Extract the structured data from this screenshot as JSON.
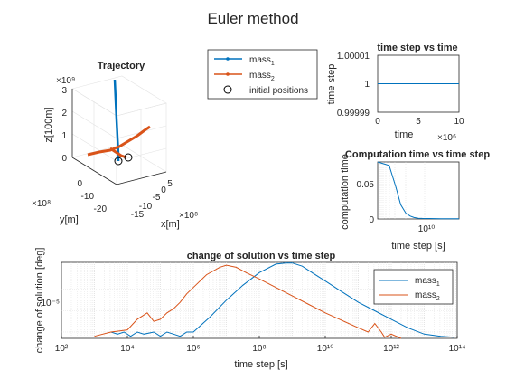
{
  "figure_title": "Euler method",
  "colors": {
    "mass1": "#0072BD",
    "mass2": "#D95319",
    "axis": "#262626",
    "grid": "#dddddd"
  },
  "chart_data": [
    {
      "id": "trajectory",
      "type": "line3d",
      "title": "Trajectory",
      "xlabel": "x[m]",
      "ylabel": "y[m]",
      "zlabel": "z[100m]",
      "x_exponent": "×10⁸",
      "y_exponent": "×10⁸",
      "z_exponent": "×10⁹",
      "x_ticks": [
        "-15",
        "-10",
        "-5",
        "0",
        "5"
      ],
      "y_ticks": [
        "-20",
        "-10",
        "0"
      ],
      "z_ticks": [
        "0",
        "1",
        "2",
        "3"
      ],
      "legend": {
        "entries": [
          {
            "label": "mass",
            "subscript": "1",
            "color": "#0072BD",
            "marker": "dot"
          },
          {
            "label": "mass",
            "subscript": "2",
            "color": "#D95319",
            "marker": "dot"
          },
          {
            "label": "initial positions",
            "color": "#000000",
            "marker": "circle"
          }
        ]
      }
    },
    {
      "id": "timestep",
      "type": "line",
      "title": "time step vs time",
      "xlabel": "time",
      "ylabel": "time step",
      "x_exponent": "×10⁶",
      "x_ticks": [
        "0",
        "5",
        "10"
      ],
      "y_ticks": [
        "0.99999",
        "1",
        "1.00001"
      ],
      "xlim": [
        0,
        10000000
      ],
      "ylim": [
        0.99999,
        1.00001
      ],
      "series": [
        {
          "x": [
            0,
            10000000
          ],
          "y": [
            1,
            1
          ]
        }
      ]
    },
    {
      "id": "comptime",
      "type": "line",
      "title": "Computation time vs time step",
      "xlabel": "time step [s]",
      "ylabel": "computation time",
      "x_tick_labels": [
        "10¹⁰"
      ],
      "y_ticks": [
        "0",
        "0.05"
      ],
      "ylim": [
        0,
        0.08
      ],
      "series": [
        {
          "x": [
            0,
            0.02,
            0.05,
            0.08,
            0.12,
            0.16,
            0.2,
            0.25,
            0.3,
            0.4,
            0.5,
            0.6,
            0.7,
            0.8,
            0.9,
            1.0
          ],
          "y": [
            0.08,
            0.075,
            0.045,
            0.02,
            0.008,
            0.004,
            0.002,
            0.001,
            0.0008,
            0.0006,
            0.0005,
            0.0004,
            0.0004,
            0.0003,
            0.0003,
            0.0003
          ]
        }
      ]
    },
    {
      "id": "change",
      "type": "line",
      "title": "change of solution vs time step",
      "xlabel": "time step [s]",
      "ylabel": "change of solution [deg]",
      "xscale": "log",
      "yscale": "log",
      "xlim": [
        100,
        100000000000000
      ],
      "x_ticks": [
        100,
        10000,
        1000000,
        100000000,
        10000000000,
        1000000000000,
        100000000000000
      ],
      "x_tick_labels": [
        "10²",
        "10⁴",
        "10⁶",
        "10⁸",
        "10¹⁰",
        "10¹²",
        "10¹⁴"
      ],
      "y_tick_labels": [
        "10⁻⁵"
      ],
      "legend": {
        "position": "top-right",
        "entries": [
          {
            "label": "mass",
            "subscript": "1",
            "color": "#0072BD"
          },
          {
            "label": "mass",
            "subscript": "2",
            "color": "#D95319"
          }
        ]
      },
      "series": [
        {
          "name": "mass1",
          "log10x": [
            3.5,
            3.7,
            3.9,
            4.1,
            4.3,
            4.5,
            4.8,
            5.0,
            5.2,
            5.4,
            5.6,
            5.8,
            6.0,
            6.5,
            7.0,
            7.5,
            8.0,
            8.5,
            8.8,
            9.0,
            9.3,
            9.6,
            10.0,
            10.5,
            11.0,
            11.5,
            12.0,
            12.5,
            13.0,
            13.5,
            13.9
          ],
          "log10y": [
            -7.0,
            -7.1,
            -7.0,
            -7.2,
            -7.0,
            -7.1,
            -7.0,
            -7.2,
            -7.0,
            -7.1,
            -7.2,
            -7.0,
            -7.0,
            -6.3,
            -5.5,
            -4.8,
            -4.2,
            -3.8,
            -3.75,
            -3.75,
            -3.9,
            -4.2,
            -4.6,
            -5.1,
            -5.6,
            -6.0,
            -6.4,
            -6.8,
            -7.1,
            -7.2,
            -7.25
          ]
        },
        {
          "name": "mass2",
          "log10x": [
            3.0,
            3.5,
            4.0,
            4.3,
            4.6,
            4.8,
            5.0,
            5.2,
            5.4,
            5.6,
            5.8,
            6.0,
            6.4,
            6.8,
            7.0,
            7.3,
            7.6,
            8.0,
            8.5,
            9.0,
            9.5,
            10.0,
            10.5,
            11.0,
            11.3,
            11.5,
            11.7,
            11.8,
            12.0,
            12.3
          ],
          "log10y": [
            -7.2,
            -7.0,
            -6.9,
            -6.4,
            -6.1,
            -6.5,
            -6.4,
            -6.1,
            -5.9,
            -5.6,
            -5.2,
            -4.9,
            -4.3,
            -3.95,
            -3.85,
            -3.95,
            -4.2,
            -4.5,
            -4.9,
            -5.3,
            -5.7,
            -6.1,
            -6.45,
            -6.8,
            -7.0,
            -6.6,
            -7.0,
            -7.25,
            -7.1,
            -7.3
          ]
        }
      ]
    }
  ]
}
